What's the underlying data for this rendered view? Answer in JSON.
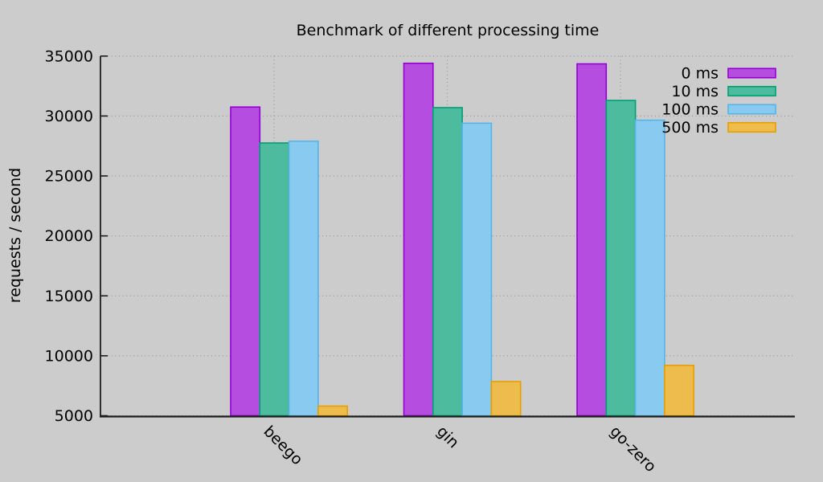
{
  "chart_data": {
    "type": "bar",
    "title": "Benchmark of different processing time",
    "xlabel": "",
    "ylabel": "requests / second",
    "categories": [
      "beego",
      "gin",
      "go-zero"
    ],
    "series": [
      {
        "name": "0 ms",
        "fill": "#b44de0",
        "border": "#9400d3",
        "values": [
          30750,
          34400,
          34350
        ]
      },
      {
        "name": "10 ms",
        "fill": "#4dbb9d",
        "border": "#009e73",
        "values": [
          27750,
          30700,
          31300
        ]
      },
      {
        "name": "100 ms",
        "fill": "#89caf0",
        "border": "#56b4e9",
        "values": [
          27900,
          29400,
          29650
        ]
      },
      {
        "name": "500 ms",
        "fill": "#eebc4d",
        "border": "#e69f00",
        "values": [
          5800,
          7850,
          9200
        ]
      }
    ],
    "ylim": [
      5000,
      35000
    ],
    "ytick_step": 5000,
    "ytick_labels": [
      "5000",
      "10000",
      "15000",
      "20000",
      "25000",
      "30000",
      "35000"
    ],
    "grid": true,
    "grid_style": "dotted",
    "legend_position": "top-right",
    "colors": {
      "background": "#cccccc",
      "grid": "#999999",
      "axis": "#1c1c1c",
      "text": "#000000"
    }
  }
}
